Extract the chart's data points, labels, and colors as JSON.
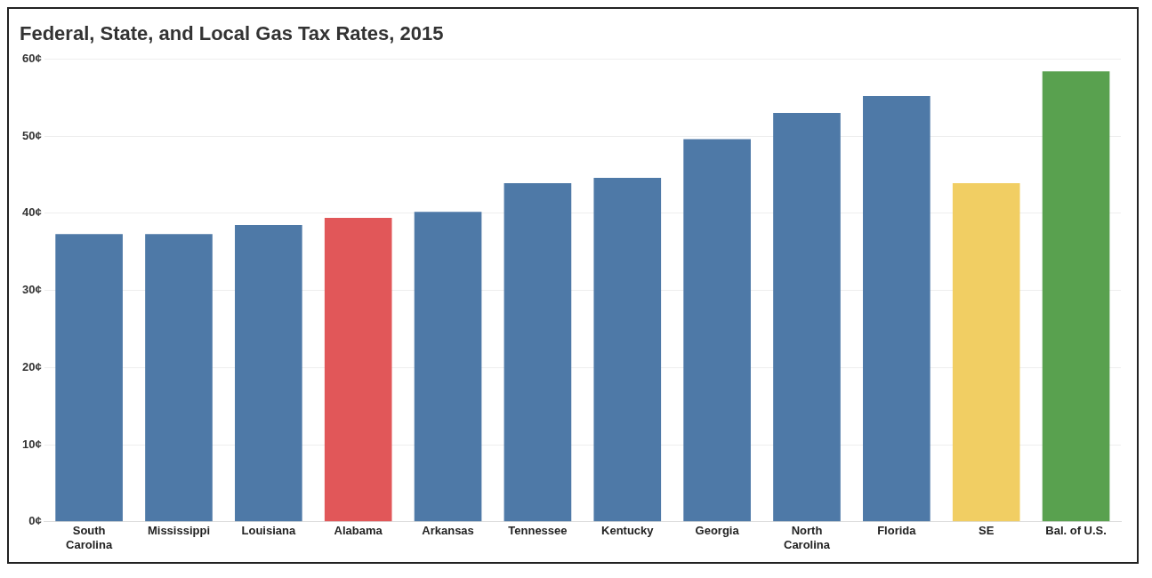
{
  "chart_data": {
    "type": "bar",
    "title": "Federal, State, and Local Gas Tax Rates, 2015",
    "categories": [
      "South Carolina",
      "Mississippi",
      "Louisiana",
      "Alabama",
      "Arkansas",
      "Tennessee",
      "Kentucky",
      "Georgia",
      "North Carolina",
      "Florida",
      "SE",
      "Bal. of U.S."
    ],
    "values": [
      37.3,
      37.3,
      38.5,
      39.4,
      40.2,
      43.9,
      44.6,
      49.6,
      53.0,
      55.2,
      43.9,
      58.4
    ],
    "colors": [
      "#4e79a7",
      "#4e79a7",
      "#4e79a7",
      "#e15759",
      "#4e79a7",
      "#4e79a7",
      "#4e79a7",
      "#4e79a7",
      "#4e79a7",
      "#4e79a7",
      "#f1ce63",
      "#59a14f"
    ],
    "ylim": [
      0,
      60
    ],
    "yticks": [
      {
        "value": 0,
        "label": "0¢"
      },
      {
        "value": 10,
        "label": "10¢"
      },
      {
        "value": 20,
        "label": "20¢"
      },
      {
        "value": 30,
        "label": "30¢"
      },
      {
        "value": 40,
        "label": "40¢"
      },
      {
        "value": 50,
        "label": "50¢"
      },
      {
        "value": 60,
        "label": "60¢"
      }
    ],
    "grid": "y",
    "legend": false
  }
}
